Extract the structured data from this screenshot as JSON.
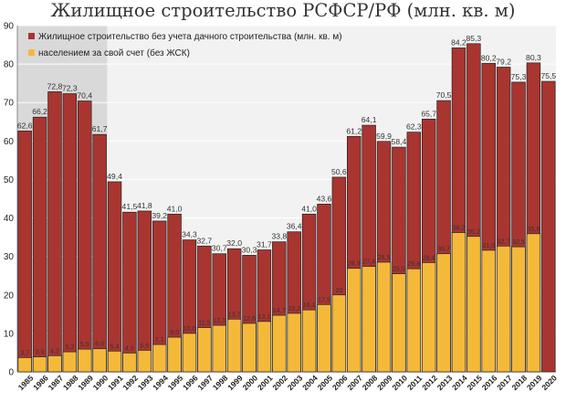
{
  "title": "Жилищное строительство РСФСР/РФ (млн. кв. м)",
  "colors": {
    "series_total": "#A93530",
    "series_own": "#F5B93A",
    "plot_bg_light": "#F2F2F2",
    "plot_bg_dark": "#D9D9D9",
    "grid": "#FFFFFF",
    "bar_border": "#222222"
  },
  "chart_data": {
    "type": "bar",
    "title": "Жилищное строительство РСФСР/РФ (млн. кв. м)",
    "xlabel": "",
    "ylabel": "",
    "ylim": [
      0,
      90
    ],
    "yticks": [
      0,
      10,
      20,
      30,
      40,
      50,
      60,
      70,
      80,
      90
    ],
    "grid": true,
    "legend": "top-left",
    "categories": [
      "1985",
      "1986",
      "1987",
      "1988",
      "1989",
      "1990",
      "1991",
      "1992",
      "1993",
      "1994",
      "1995",
      "1996",
      "1997",
      "1998",
      "1999",
      "2000",
      "2001",
      "2002",
      "2003",
      "2004",
      "2005",
      "2006",
      "2007",
      "2008",
      "2009",
      "2010",
      "2011",
      "2012",
      "2013",
      "2014",
      "2015",
      "2016",
      "2017",
      "2018",
      "2019",
      "2020"
    ],
    "series": [
      {
        "name": "Жилищное строительство без учета дачного строительства (млн. кв. м)",
        "values": [
          62.6,
          66.2,
          72.8,
          72.3,
          70.4,
          61.7,
          49.4,
          41.5,
          41.8,
          39.2,
          41.0,
          34.3,
          32.7,
          30.7,
          32.0,
          30.3,
          31.7,
          33.8,
          36.4,
          41.0,
          43.6,
          50.6,
          61.2,
          64.1,
          59.9,
          58.4,
          62.3,
          65.7,
          70.5,
          84.2,
          85.3,
          80.2,
          79.2,
          75.3,
          80.3,
          75.5
        ],
        "labels": [
          "62,6",
          "66,2",
          "72,8",
          "72,3",
          "70,4",
          "61,7",
          "49,4",
          "41,5",
          "41,8",
          "39,2",
          "41,0",
          "34,3",
          "32,7",
          "30,7",
          "32,0",
          "30,3",
          "31,7",
          "33,8",
          "36,4",
          "41,0",
          "43,6",
          "50,6",
          "61,2",
          "64,1",
          "59,9",
          "58,4",
          "62,3",
          "65,7",
          "70,5",
          "84,2",
          "85,3",
          "80,2",
          "79,2",
          "75,3",
          "80,3",
          "75,5"
        ]
      },
      {
        "name": "населением за свой счет (без ЖСК)",
        "values": [
          3.7,
          3.9,
          4.2,
          5.2,
          5.9,
          6.0,
          5.4,
          4.9,
          5.6,
          7.1,
          9.0,
          10.0,
          11.5,
          12.1,
          13.7,
          12.6,
          13.1,
          14.7,
          15.2,
          16.1,
          17.5,
          20.0,
          26.9,
          27.4,
          28.5,
          25.5,
          26.8,
          28.4,
          30.7,
          36.2,
          35.2,
          31.6,
          32.7,
          32.5,
          35.9,
          null
        ],
        "labels": [
          "3,7",
          "3,9",
          "4,2",
          "5,2",
          "5,9",
          "6,0",
          "5,4",
          "4,9",
          "5,6",
          "7,1",
          "9,0",
          "10,0",
          "11,5",
          "12,1",
          "13,7",
          "12,6",
          "13,1",
          "14,7",
          "15,2",
          "16,1",
          "17,5",
          "20",
          "26,9",
          "27,4",
          "28,5",
          "25,5",
          "26,8",
          "28,4",
          "30,7",
          "36,2",
          "35,2",
          "31,6",
          "32,7",
          "32,5",
          "35,9",
          ""
        ]
      }
    ]
  }
}
